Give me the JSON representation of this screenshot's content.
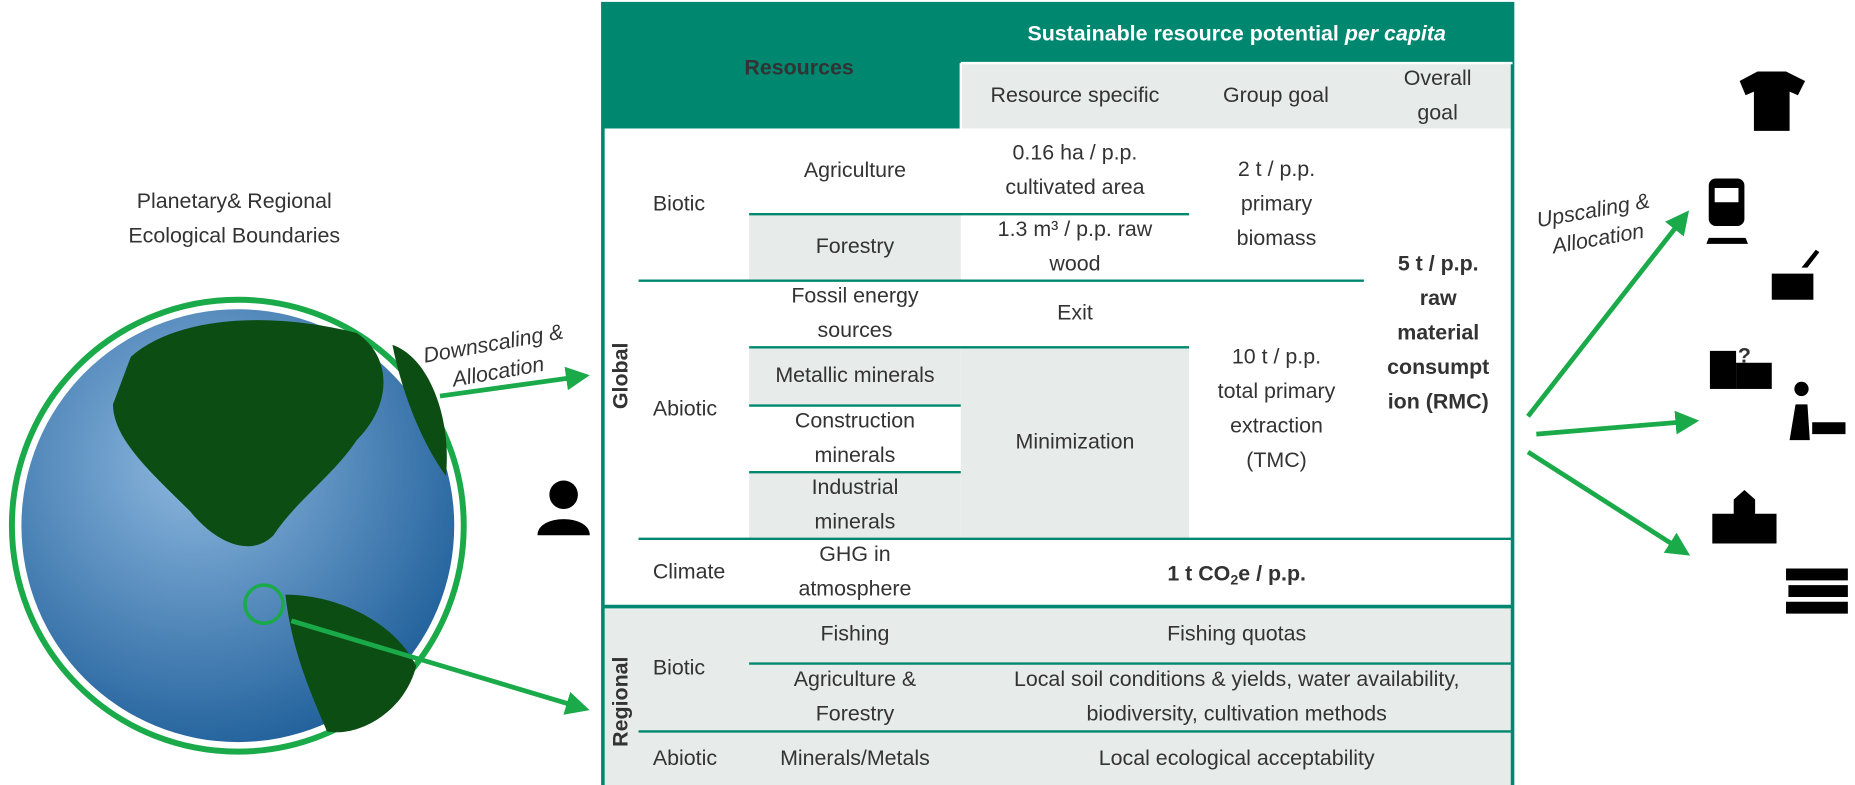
{
  "left": {
    "title_lines": [
      "Planetary& Regional",
      "Ecological Boundaries"
    ],
    "downscaling_lines": [
      "Downscaling &",
      "Allocation"
    ]
  },
  "right": {
    "upscaling_lines": [
      "Upscaling &",
      "Allocation"
    ],
    "question": "?"
  },
  "table": {
    "header": {
      "resources": "Resources",
      "potential": "Sustainable resource potential ",
      "potential_em": "per capita",
      "columns": [
        [
          "Resource specific"
        ],
        [
          "Group goal"
        ],
        [
          "Overall",
          "goal"
        ]
      ]
    },
    "sections": {
      "global": "Global",
      "regional": "Regional"
    },
    "co2": [
      "1 t CO",
      "2",
      "e / p.p."
    ],
    "cells": [
      [
        "Biotic"
      ],
      [
        "Agriculture"
      ],
      [
        "0.16 ha / p.p.",
        "cultivated area"
      ],
      [
        "Forestry"
      ],
      [
        "1.3 m³ / p.p. raw",
        "wood"
      ],
      [
        "2 t / p.p.",
        "primary",
        "biomass"
      ],
      [
        "5 t / p.p.",
        "raw",
        "material",
        "consumpt",
        "ion (RMC)"
      ],
      [
        "Abiotic"
      ],
      [
        "Fossil energy",
        "sources"
      ],
      [
        "Exit"
      ],
      [
        "Metallic minerals"
      ],
      [
        "Construction",
        "minerals"
      ],
      [
        "Industrial",
        "minerals"
      ],
      [
        "Minimization"
      ],
      [
        "10 t / p.p.",
        "total primary",
        "extraction",
        "(TMC)"
      ],
      [
        "Climate"
      ],
      [
        "GHG in",
        "atmosphere"
      ],
      [
        "Biotic"
      ],
      [
        "Fishing"
      ],
      [
        "Fishing quotas"
      ],
      [
        "Agriculture &",
        "Forestry"
      ],
      [
        "Local soil conditions & yields, water availability,",
        "biodiversity, cultivation methods"
      ],
      [
        "Abiotic"
      ],
      [
        "Minerals/Metals"
      ],
      [
        "Local ecological acceptability"
      ]
    ]
  }
}
